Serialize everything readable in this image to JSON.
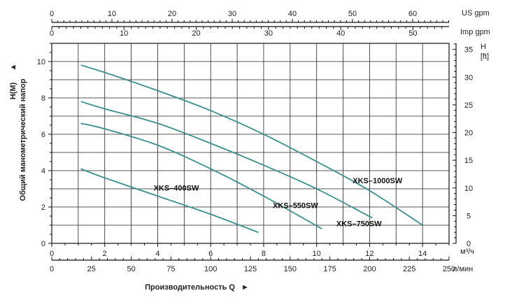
{
  "chart_data": {
    "type": "line",
    "colors": {
      "curve": "#3a8f8f",
      "grid": "#222222",
      "axis": "#111111",
      "text": "#222222"
    },
    "x_primary": {
      "label": "м³/ч",
      "range": [
        0,
        15
      ],
      "ticks": [
        "0",
        "2",
        "4",
        "6",
        "8",
        "10",
        "12",
        "14"
      ]
    },
    "x_lmin": {
      "label": "л/мин",
      "ticks": [
        "0",
        "25",
        "50",
        "75",
        "100",
        "125",
        "150",
        "175",
        "200",
        "225",
        "250"
      ]
    },
    "x_us_gpm": {
      "label": "US gpm",
      "ticks": [
        "0",
        "10",
        "20",
        "30",
        "40",
        "50",
        "60"
      ]
    },
    "x_imp_gpm": {
      "label": "Imp gpm",
      "ticks": [
        "0",
        "10",
        "20",
        "30",
        "40",
        "50"
      ]
    },
    "y_left": {
      "label": "Общий манометрический напор",
      "unit_label": "H(M)",
      "arrow": "▲",
      "range": [
        0,
        11
      ],
      "ticks": [
        "0",
        "2",
        "4",
        "6",
        "8",
        "10"
      ]
    },
    "y_right": {
      "label_h": "H",
      "label_ft": "[ft]",
      "ticks": [
        "0",
        "5",
        "10",
        "15",
        "20",
        "25",
        "30",
        "35"
      ]
    },
    "x_title": "Производительность Q",
    "x_title_arrow": "►",
    "series": [
      {
        "name": "XKS–400SW",
        "x": [
          1.1,
          2,
          4,
          6,
          7.8
        ],
        "y": [
          4.1,
          3.6,
          2.6,
          1.6,
          0.6
        ]
      },
      {
        "name": "XKS–550SW",
        "x": [
          1.1,
          2,
          4,
          6,
          8,
          10.2
        ],
        "y": [
          6.6,
          6.3,
          5.4,
          4.1,
          2.6,
          0.8
        ]
      },
      {
        "name": "XKS–750SW",
        "x": [
          1.1,
          2,
          4,
          6,
          8,
          10,
          12.1
        ],
        "y": [
          7.8,
          7.4,
          6.6,
          5.5,
          4.3,
          3.0,
          1.4
        ]
      },
      {
        "name": "XKS–1000SW",
        "x": [
          1.1,
          2,
          4,
          6,
          8,
          10,
          12,
          14.0
        ],
        "y": [
          9.8,
          9.4,
          8.4,
          7.3,
          6.0,
          4.5,
          2.9,
          1.0
        ]
      }
    ]
  }
}
